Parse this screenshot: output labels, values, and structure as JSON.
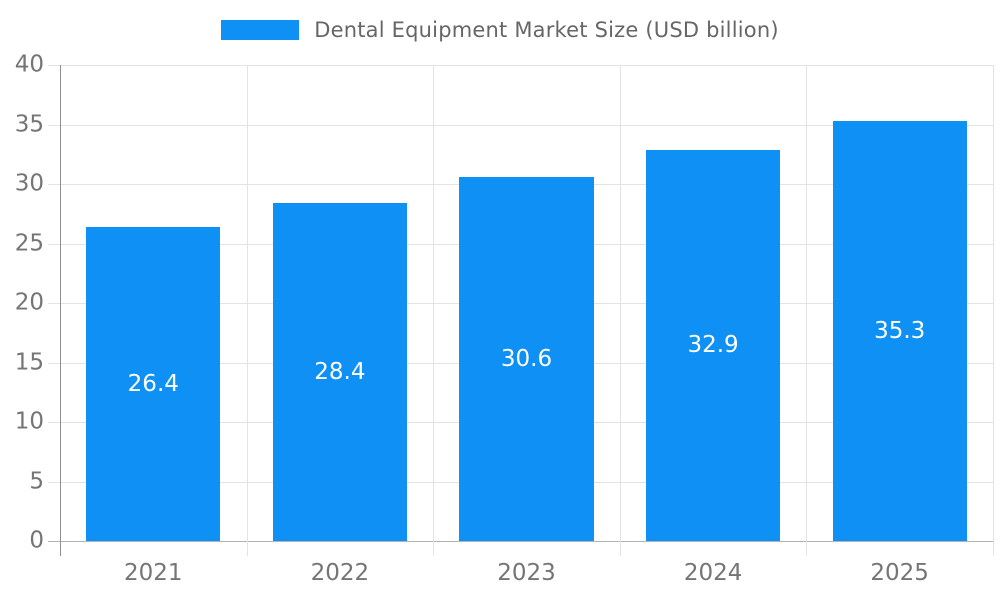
{
  "chart_data": {
    "type": "bar",
    "title": "Dental Equipment Market Size (USD billion)",
    "categories": [
      "2021",
      "2022",
      "2023",
      "2024",
      "2025"
    ],
    "values": [
      26.4,
      28.4,
      30.6,
      32.9,
      35.3
    ],
    "value_labels": [
      "26.4",
      "28.4",
      "30.6",
      "32.9",
      "35.3"
    ],
    "xlabel": "",
    "ylabel": "",
    "ylim": [
      0,
      40
    ],
    "yticks": [
      0,
      5,
      10,
      15,
      20,
      25,
      30,
      35,
      40
    ],
    "grid": true,
    "legend_position": "top-center"
  },
  "colors": {
    "bar": "#0e90f4",
    "value_label": "#ffffff",
    "gridline": "#e3e3e3",
    "baseline": "#b3b3b3",
    "y_axis_line": "#8f8f8f",
    "tick_text": "#757575",
    "legend_text": "#666666",
    "background": "#ffffff"
  }
}
